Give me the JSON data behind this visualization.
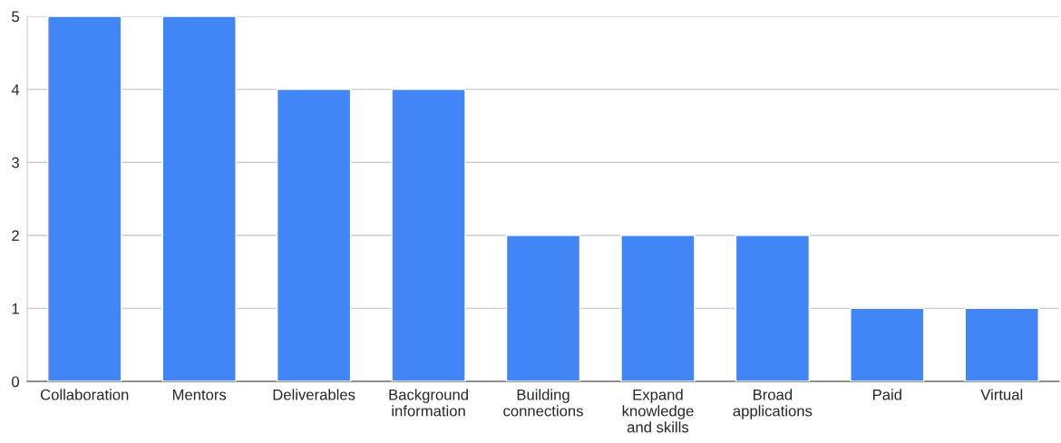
{
  "chart_data": {
    "type": "bar",
    "categories": [
      "Collaboration",
      "Mentors",
      "Deliverables",
      "Background\ninformation",
      "Building\nconnections",
      "Expand\nknowledge\nand skills",
      "Broad\napplications",
      "Paid",
      "Virtual"
    ],
    "values": [
      5,
      5,
      4,
      4,
      2,
      2,
      2,
      1,
      1
    ],
    "color": "#4285f4",
    "ylim": [
      0,
      5
    ],
    "yticks": [
      0,
      1,
      2,
      3,
      4,
      5
    ],
    "grid": "y"
  }
}
